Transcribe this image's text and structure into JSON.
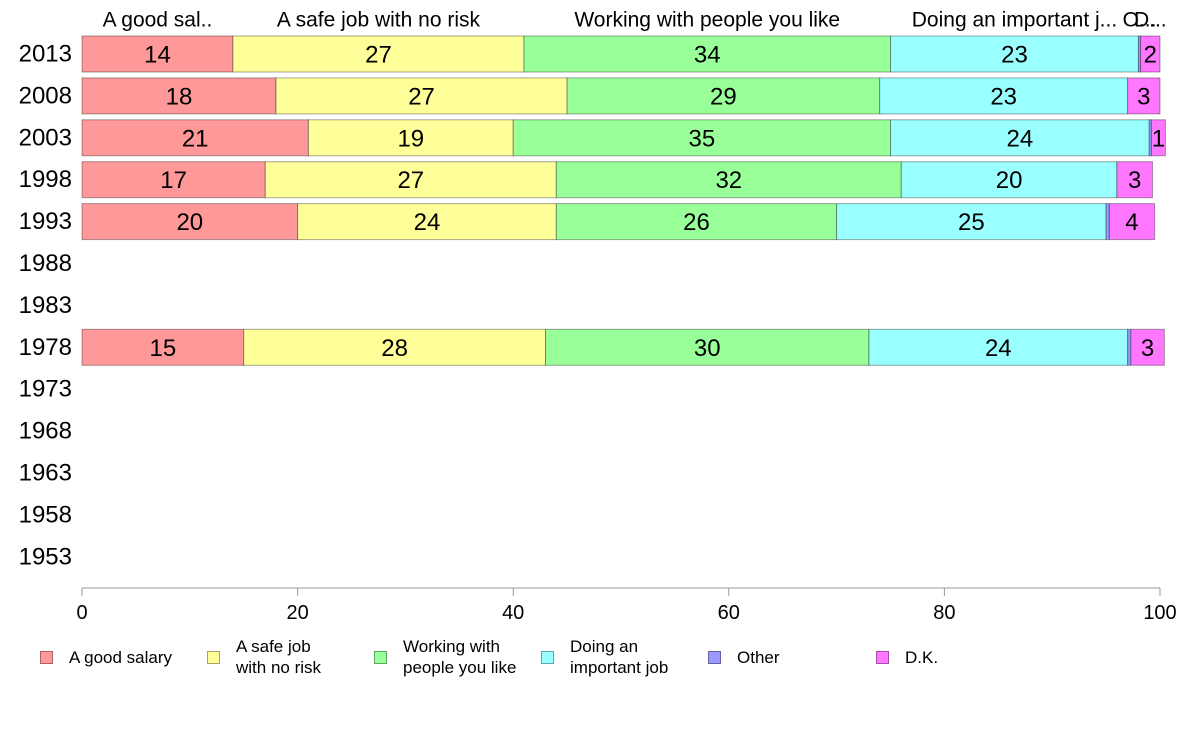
{
  "chart_data": {
    "type": "bar",
    "orientation": "horizontal",
    "stacked": true,
    "categories": [
      "2013",
      "2008",
      "2003",
      "1998",
      "1993",
      "1988",
      "1983",
      "1978",
      "1973",
      "1968",
      "1963",
      "1958",
      "1953"
    ],
    "series": [
      {
        "name": "A good salary",
        "top_label": "A good sal..",
        "legend_label": "A good salary",
        "color": "#FF9999",
        "values": [
          14,
          18,
          21,
          17,
          20,
          null,
          null,
          15,
          null,
          null,
          null,
          null,
          null
        ],
        "data_labels": [
          "14",
          "18",
          "21",
          "17",
          "20",
          "",
          "",
          "15",
          "",
          "",
          "",
          "",
          ""
        ]
      },
      {
        "name": "A safe job with no risk",
        "top_label": "A safe job with no risk",
        "legend_label": "A safe job\nwith no risk",
        "color": "#FFFF99",
        "values": [
          27,
          27,
          19,
          27,
          24,
          null,
          null,
          28,
          null,
          null,
          null,
          null,
          null
        ],
        "data_labels": [
          "27",
          "27",
          "19",
          "27",
          "24",
          "",
          "",
          "28",
          "",
          "",
          "",
          "",
          ""
        ]
      },
      {
        "name": "Working with people you like",
        "top_label": "Working with people you like",
        "legend_label": "Working with\npeople you like",
        "color": "#99FF99",
        "values": [
          34,
          29,
          35,
          32,
          26,
          null,
          null,
          30,
          null,
          null,
          null,
          null,
          null
        ],
        "data_labels": [
          "34",
          "29",
          "35",
          "32",
          "26",
          "",
          "",
          "30",
          "",
          "",
          "",
          "",
          ""
        ]
      },
      {
        "name": "Doing an important job",
        "top_label": "Doing an important j...",
        "legend_label": "Doing an\nimportant job",
        "color": "#99FFFF",
        "values": [
          23,
          23,
          24,
          20,
          25,
          null,
          null,
          24,
          null,
          null,
          null,
          null,
          null
        ],
        "data_labels": [
          "23",
          "23",
          "24",
          "20",
          "25",
          "",
          "",
          "24",
          "",
          "",
          "",
          "",
          ""
        ]
      },
      {
        "name": "Other",
        "top_label": "O...",
        "legend_label": "Other",
        "color": "#9999FF",
        "values": [
          0.2,
          0,
          0.2,
          0,
          0.3,
          null,
          null,
          0.3,
          null,
          null,
          null,
          null,
          null
        ],
        "data_labels": [
          "",
          "",
          "",
          "",
          "",
          "",
          "",
          "",
          "",
          "",
          "",
          "",
          ""
        ]
      },
      {
        "name": "D.K.",
        "top_label": "D...",
        "legend_label": "D.K.",
        "color": "#FF77FF",
        "values": [
          1.8,
          3,
          1.3,
          3.3,
          4.2,
          null,
          null,
          3.1,
          null,
          null,
          null,
          null,
          null
        ],
        "data_labels": [
          "2",
          "3",
          "1",
          "3",
          "4",
          "",
          "",
          "3",
          "",
          "",
          "",
          "",
          ""
        ]
      }
    ],
    "x_ticks": [
      "0",
      "20",
      "40",
      "60",
      "80",
      "100"
    ],
    "xlim": [
      0,
      100
    ],
    "grid": false,
    "legend_position": "bottom"
  }
}
